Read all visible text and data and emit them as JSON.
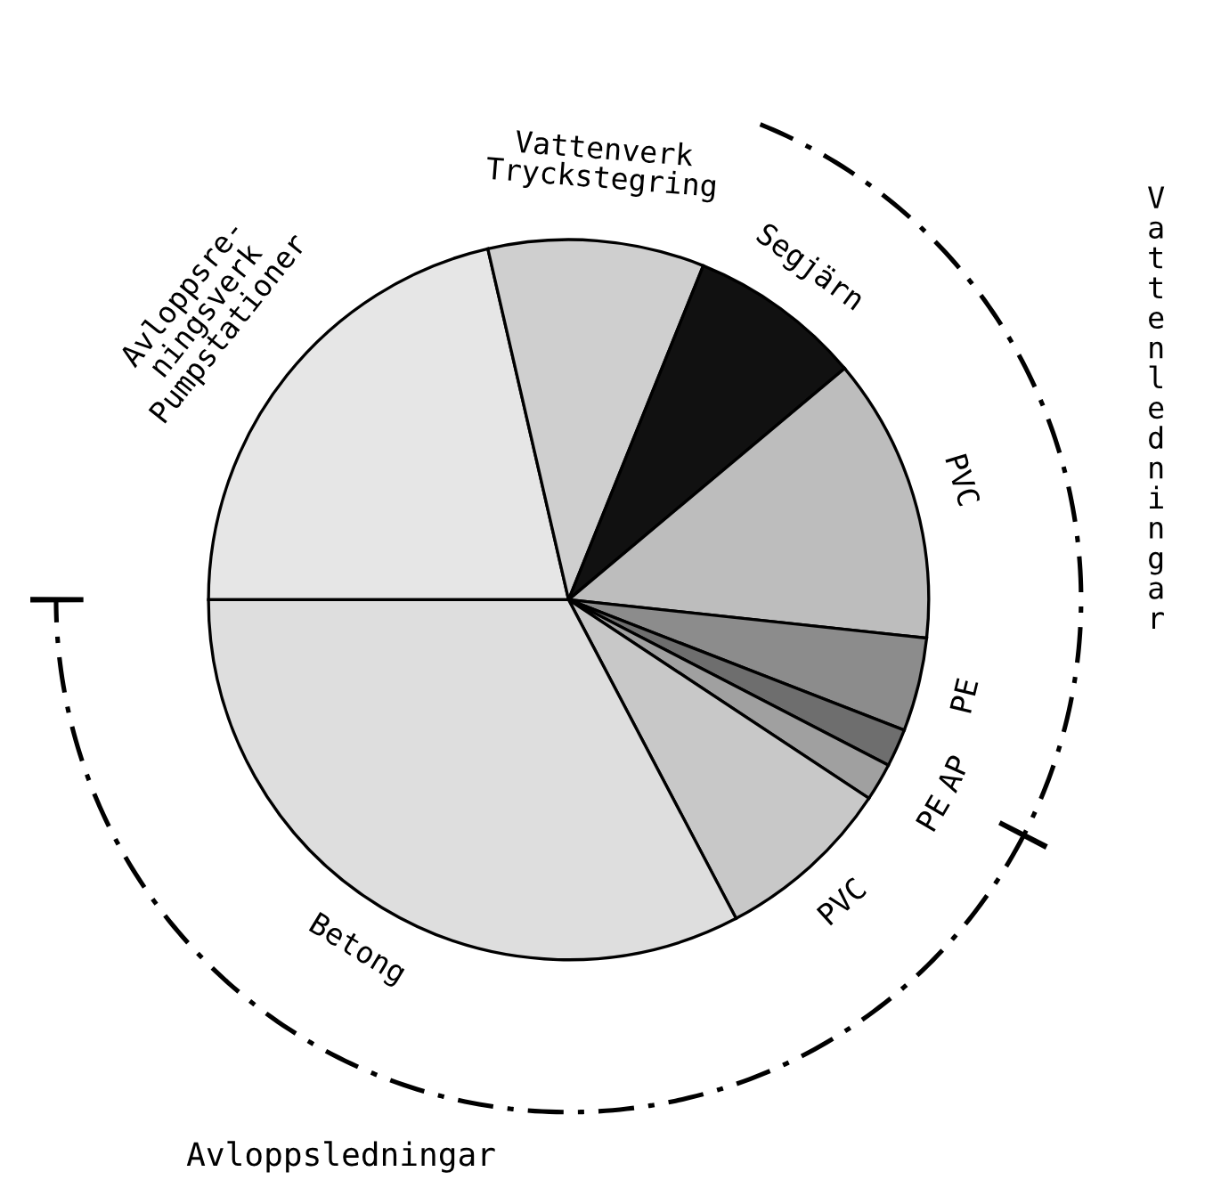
{
  "chart_data": {
    "type": "pie",
    "categories": [
      "Avloppsre-\nningsverk\nPumpstationer",
      "Vattenverk\nTryckstegring",
      "Segjärn",
      "PVC",
      "PE",
      "AP",
      "PE",
      "PVC",
      "Betong"
    ],
    "values": [
      21.4,
      9.7,
      7.8,
      12.8,
      4.2,
      1.7,
      1.7,
      8.0,
      32.7
    ],
    "colors": [
      "#e6e6e6",
      "#cfcfcf",
      "#111111",
      "#bdbdbd",
      "#8c8c8c",
      "#6e6e6e",
      "#a0a0a0",
      "#c8c8c8",
      "#dedede"
    ],
    "annotations": [
      "Vattenledningar",
      "Avloppsledningar"
    ]
  }
}
